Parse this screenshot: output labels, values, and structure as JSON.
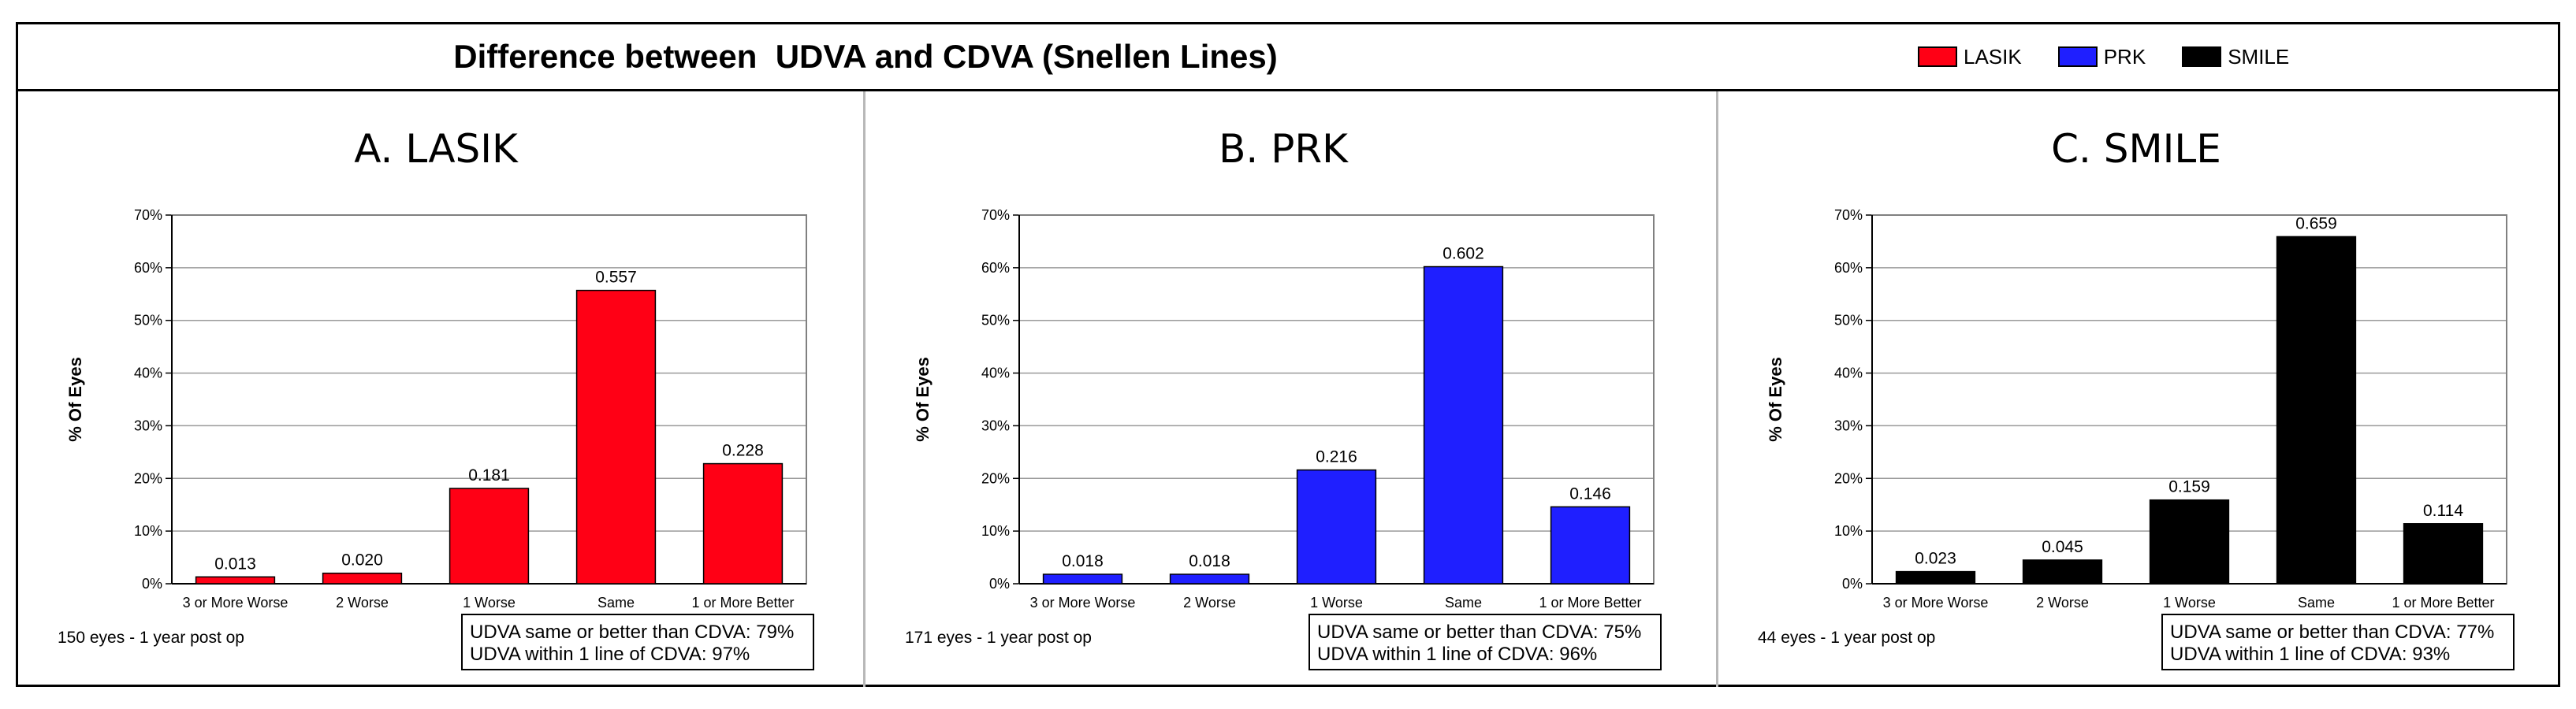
{
  "figure_title": "Difference between  UDVA and CDVA (Snellen Lines)",
  "legend": [
    {
      "label": "LASIK",
      "color": "#ff0015"
    },
    {
      "label": "PRK",
      "color": "#1f1fff"
    },
    {
      "label": "SMILE",
      "color": "#000000"
    }
  ],
  "chart_data": [
    {
      "type": "bar",
      "title": "A. LASIK",
      "categories": [
        "3 or More Worse",
        "2 Worse",
        "1 Worse",
        "Same",
        "1 or More Better"
      ],
      "values": [
        0.013,
        0.02,
        0.181,
        0.557,
        0.228
      ],
      "value_labels": [
        "0.013",
        "0.020",
        "0.181",
        "0.557",
        "0.228"
      ],
      "ylabel": "% Of Eyes",
      "ylim": [
        0,
        0.7
      ],
      "yticks": [
        "0%",
        "10%",
        "20%",
        "30%",
        "40%",
        "50%",
        "60%",
        "70%"
      ],
      "grid": true,
      "color": "#ff0015",
      "footnote": "150 eyes - 1 year post op",
      "stats": [
        "UDVA same or better than CDVA: 79%",
        "UDVA within 1 line of CDVA: 97%"
      ]
    },
    {
      "type": "bar",
      "title": "B. PRK",
      "categories": [
        "3 or More Worse",
        "2 Worse",
        "1 Worse",
        "Same",
        "1 or More Better"
      ],
      "values": [
        0.018,
        0.018,
        0.216,
        0.602,
        0.146
      ],
      "value_labels": [
        "0.018",
        "0.018",
        "0.216",
        "0.602",
        "0.146"
      ],
      "ylabel": "% Of Eyes",
      "ylim": [
        0,
        0.7
      ],
      "yticks": [
        "0%",
        "10%",
        "20%",
        "30%",
        "40%",
        "50%",
        "60%",
        "70%"
      ],
      "grid": true,
      "color": "#1f1fff",
      "footnote": "171 eyes - 1 year post op",
      "stats": [
        "UDVA same or better than CDVA: 75%",
        "UDVA within 1 line of CDVA: 96%"
      ]
    },
    {
      "type": "bar",
      "title": "C. SMILE",
      "categories": [
        "3 or More Worse",
        "2 Worse",
        "1 Worse",
        "Same",
        "1 or More Better"
      ],
      "values": [
        0.023,
        0.045,
        0.159,
        0.659,
        0.114
      ],
      "value_labels": [
        "0.023",
        "0.045",
        "0.159",
        "0.659",
        "0.114"
      ],
      "ylabel": "% Of Eyes",
      "ylim": [
        0,
        0.7
      ],
      "yticks": [
        "0%",
        "10%",
        "20%",
        "30%",
        "40%",
        "50%",
        "60%",
        "70%"
      ],
      "grid": true,
      "color": "#000000",
      "footnote": "44 eyes - 1 year post op",
      "stats": [
        "UDVA same or better than CDVA: 77%",
        "UDVA within 1 line of CDVA: 93%"
      ]
    }
  ]
}
